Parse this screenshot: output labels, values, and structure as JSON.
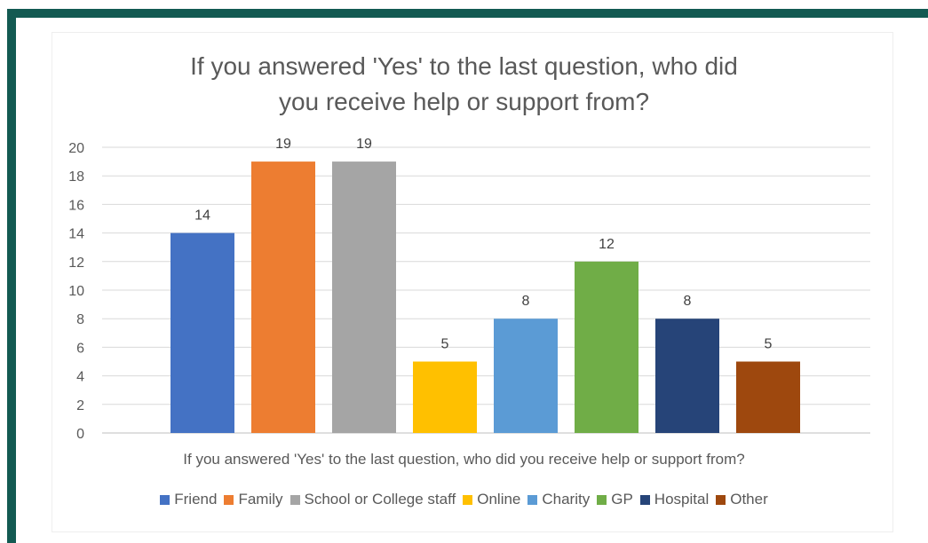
{
  "chart_data": {
    "type": "bar",
    "title_lines": [
      "If you answered 'Yes' to the last question, who did",
      "you receive help or support from?"
    ],
    "xlabel": "If you answered 'Yes' to the last question, who did you receive help or support from?",
    "ylabel": "",
    "ylim": [
      0,
      20
    ],
    "yticks": [
      0,
      2,
      4,
      6,
      8,
      10,
      12,
      14,
      16,
      18,
      20
    ],
    "grid": true,
    "legend_position": "bottom",
    "categories": [
      "Friend",
      "Family",
      "School or College staff",
      "Online",
      "Charity",
      "GP",
      "Hospital",
      "Other"
    ],
    "values": [
      14,
      19,
      19,
      5,
      8,
      12,
      8,
      5
    ],
    "colors": [
      "#4472c4",
      "#ed7d31",
      "#a5a5a5",
      "#ffc000",
      "#5b9bd5",
      "#70ad47",
      "#264478",
      "#9e480e"
    ]
  }
}
